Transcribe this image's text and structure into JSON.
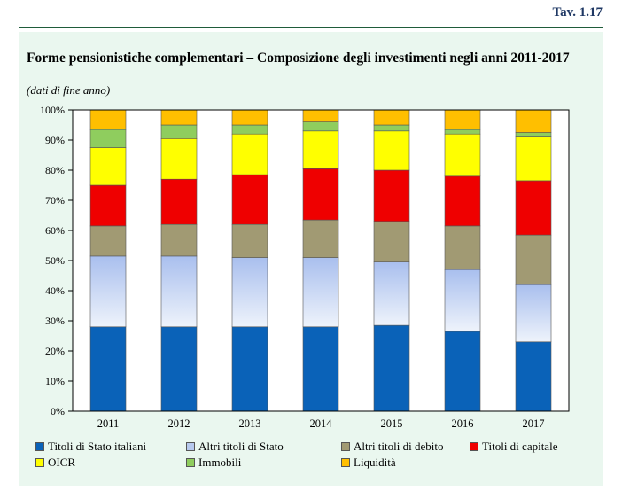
{
  "header": {
    "table_number": "Tav. 1.17"
  },
  "chart_data": {
    "type": "bar",
    "stacked": true,
    "title": "Forme pensionistiche complementari – Composizione degli investimenti negli anni 2011-2017",
    "subtitle": "(dati di fine anno)",
    "categories": [
      "2011",
      "2012",
      "2013",
      "2014",
      "2015",
      "2016",
      "2017"
    ],
    "ylim": [
      0,
      100
    ],
    "yticks": [
      "0%",
      "10%",
      "20%",
      "30%",
      "40%",
      "50%",
      "60%",
      "70%",
      "80%",
      "90%",
      "100%"
    ],
    "legend_position": "bottom",
    "series": [
      {
        "name": "Titoli di Stato italiani",
        "color": "#0a62b8",
        "values": [
          28,
          28,
          28,
          28,
          28.5,
          26.5,
          23
        ]
      },
      {
        "name": "Altri titoli di Stato",
        "color": "#b7c9ee",
        "values": [
          23.5,
          23.5,
          23,
          23,
          21,
          20.5,
          19
        ]
      },
      {
        "name": "Altri titoli di debito",
        "color": "#a19a73",
        "values": [
          10,
          10.5,
          11,
          12.5,
          13.5,
          14.5,
          16.5
        ]
      },
      {
        "name": "Titoli di capitale",
        "color": "#ef0000",
        "values": [
          13.5,
          15,
          16.5,
          17,
          17,
          16.5,
          18
        ]
      },
      {
        "name": "OICR",
        "color": "#ffff00",
        "values": [
          12.5,
          13.5,
          13.5,
          12.5,
          13,
          14,
          14.5
        ]
      },
      {
        "name": "Immobili",
        "color": "#8fcd5e",
        "values": [
          6,
          4.5,
          3,
          3,
          2,
          1.5,
          1.5
        ]
      },
      {
        "name": "Liquidità",
        "color": "#ffbf00",
        "values": [
          6.5,
          5,
          5,
          4,
          5,
          6.5,
          7.5
        ]
      }
    ]
  }
}
